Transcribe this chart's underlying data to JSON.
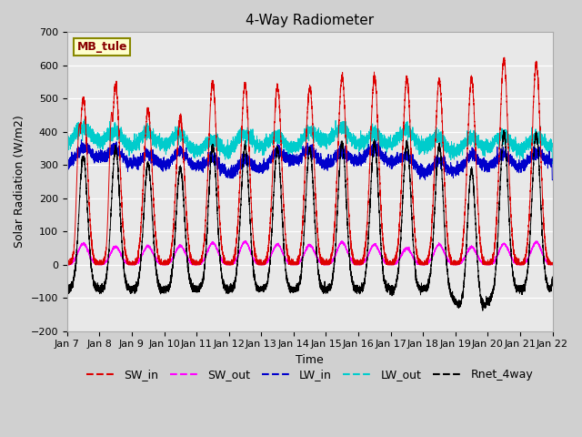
{
  "title": "4-Way Radiometer",
  "xlabel": "Time",
  "ylabel": "Solar Radiation (W/m2)",
  "ylim": [
    -200,
    700
  ],
  "station_label": "MB_tule",
  "legend_entries": [
    "SW_in",
    "SW_out",
    "LW_in",
    "LW_out",
    "Rnet_4way"
  ],
  "line_colors": [
    "#dd0000",
    "#ff00ff",
    "#0000cc",
    "#00cccc",
    "#000000"
  ],
  "title_fontsize": 11,
  "label_fontsize": 9,
  "tick_fontsize": 8,
  "legend_fontsize": 9,
  "x_tick_labels": [
    "Jan 7",
    "Jan 8",
    "Jan 9",
    "Jan 10",
    "Jan 11",
    "Jan 12",
    "Jan 13",
    "Jan 14",
    "Jan 15",
    "Jan 16",
    "Jan 17",
    "Jan 18",
    "Jan 19",
    "Jan 20",
    "Jan 21",
    "Jan 22"
  ],
  "yticks": [
    -200,
    -100,
    0,
    100,
    200,
    300,
    400,
    500,
    600,
    700
  ],
  "days": 15,
  "n_points": 7200
}
